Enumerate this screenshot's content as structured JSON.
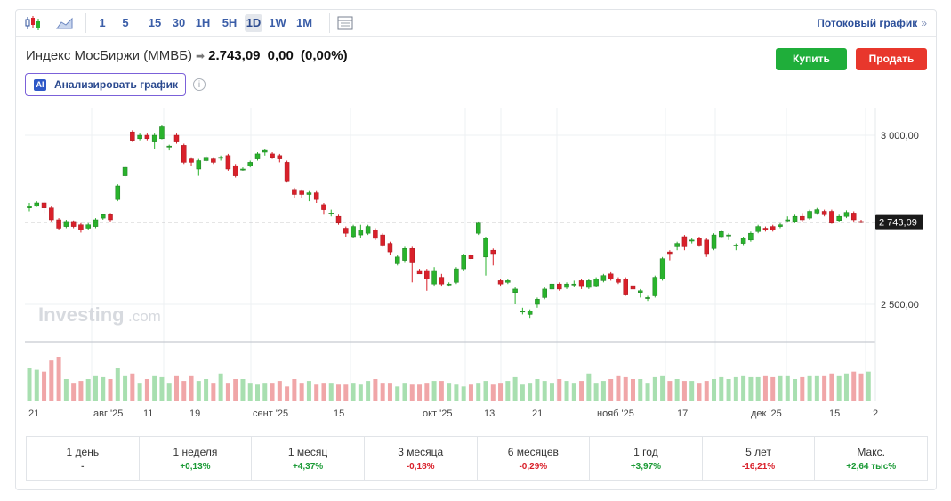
{
  "toolbar": {
    "intervals": [
      "1",
      "5",
      "15",
      "30",
      "1H",
      "5H",
      "1D",
      "1W",
      "1M"
    ],
    "active_interval": "1D",
    "stream_label": "Потоковый график",
    "stream_arrow": "»"
  },
  "instrument": {
    "name": "Индекс МосБиржи (ММВБ)",
    "price": "2.743,09",
    "change": "0,00",
    "change_pct": "(0,00%)"
  },
  "actions": {
    "buy": "Купить",
    "sell": "Продать"
  },
  "ai": {
    "badge": "AI",
    "label": "Анализировать график",
    "info": "i"
  },
  "watermark": {
    "brand": "Investing",
    "suffix": ".com"
  },
  "chart_data": {
    "type": "candlestick",
    "y_ticks": [
      "3 000,00",
      "2 500,00"
    ],
    "y_tick_values": [
      3000,
      2500
    ],
    "last_price_label": "2 743,09",
    "last_price": 2743.09,
    "x_labels": [
      "21",
      "авг '25",
      "11",
      "19",
      "сент '25",
      "15",
      "окт '25",
      "13",
      "21",
      "нояб '25",
      "17",
      "дек '25",
      "15",
      "2"
    ],
    "colors": {
      "up": "#29b32c",
      "down": "#d9202a",
      "up_vol": "#a8dfb0",
      "down_vol": "#f0a6a8"
    },
    "candles": [
      [
        2785,
        2790,
        2775,
        2800
      ],
      [
        2790,
        2800,
        2788,
        2805
      ],
      [
        2800,
        2785,
        2770,
        2805
      ],
      [
        2785,
        2750,
        2745,
        2790
      ],
      [
        2750,
        2725,
        2720,
        2755
      ],
      [
        2730,
        2745,
        2725,
        2750
      ],
      [
        2745,
        2730,
        2725,
        2748
      ],
      [
        2735,
        2720,
        2712,
        2740
      ],
      [
        2725,
        2735,
        2720,
        2740
      ],
      [
        2730,
        2750,
        2725,
        2755
      ],
      [
        2755,
        2765,
        2750,
        2768
      ],
      [
        2765,
        2750,
        2745,
        2770
      ],
      [
        2810,
        2850,
        2805,
        2855
      ],
      [
        2880,
        2905,
        2875,
        2910
      ],
      [
        3010,
        2985,
        2980,
        3015
      ],
      [
        2990,
        3000,
        2985,
        3005
      ],
      [
        3000,
        2990,
        2985,
        3005
      ],
      [
        2980,
        3000,
        2960,
        3005
      ],
      [
        2990,
        3025,
        2988,
        3030
      ],
      [
        2965,
        2968,
        2955,
        2972
      ],
      [
        3000,
        2980,
        2975,
        3005
      ],
      [
        2970,
        2920,
        2915,
        2975
      ],
      [
        2930,
        2920,
        2910,
        2935
      ],
      [
        2900,
        2925,
        2880,
        2930
      ],
      [
        2925,
        2935,
        2920,
        2940
      ],
      [
        2930,
        2920,
        2915,
        2935
      ],
      [
        2935,
        2935,
        2925,
        2940
      ],
      [
        2940,
        2900,
        2895,
        2945
      ],
      [
        2910,
        2880,
        2875,
        2915
      ],
      [
        2900,
        2900,
        2895,
        2905
      ],
      [
        2910,
        2920,
        2905,
        2925
      ],
      [
        2930,
        2945,
        2925,
        2950
      ],
      [
        2950,
        2955,
        2940,
        2960
      ],
      [
        2945,
        2935,
        2930,
        2950
      ],
      [
        2940,
        2930,
        2920,
        2945
      ],
      [
        2920,
        2865,
        2860,
        2925
      ],
      [
        2840,
        2825,
        2815,
        2845
      ],
      [
        2835,
        2825,
        2815,
        2840
      ],
      [
        2825,
        2830,
        2805,
        2835
      ],
      [
        2830,
        2810,
        2800,
        2835
      ],
      [
        2795,
        2780,
        2765,
        2800
      ],
      [
        2770,
        2770,
        2760,
        2780
      ],
      [
        2760,
        2740,
        2735,
        2765
      ],
      [
        2725,
        2710,
        2700,
        2730
      ],
      [
        2700,
        2730,
        2695,
        2735
      ],
      [
        2705,
        2720,
        2695,
        2735
      ],
      [
        2710,
        2730,
        2705,
        2735
      ],
      [
        2720,
        2695,
        2690,
        2725
      ],
      [
        2705,
        2675,
        2670,
        2710
      ],
      [
        2680,
        2655,
        2645,
        2685
      ],
      [
        2620,
        2640,
        2615,
        2645
      ],
      [
        2630,
        2665,
        2625,
        2670
      ],
      [
        2665,
        2625,
        2565,
        2670
      ],
      [
        2600,
        2590,
        2590,
        2605
      ],
      [
        2600,
        2575,
        2540,
        2605
      ],
      [
        2560,
        2600,
        2555,
        2610
      ],
      [
        2580,
        2560,
        2555,
        2590
      ],
      [
        2560,
        2560,
        2555,
        2565
      ],
      [
        2565,
        2605,
        2560,
        2610
      ],
      [
        2605,
        2645,
        2600,
        2650
      ],
      [
        2645,
        2635,
        2630,
        2650
      ],
      [
        2710,
        2740,
        2705,
        2745
      ],
      [
        2640,
        2695,
        2585,
        2700
      ],
      [
        2660,
        2650,
        2615,
        2665
      ],
      [
        2570,
        2560,
        2555,
        2575
      ],
      [
        2565,
        2570,
        2560,
        2575
      ],
      [
        2535,
        2545,
        2500,
        2550
      ],
      [
        2480,
        2480,
        2470,
        2490
      ],
      [
        2470,
        2480,
        2460,
        2485
      ],
      [
        2500,
        2515,
        2490,
        2520
      ],
      [
        2520,
        2545,
        2515,
        2550
      ],
      [
        2545,
        2560,
        2540,
        2565
      ],
      [
        2560,
        2545,
        2540,
        2565
      ],
      [
        2550,
        2560,
        2545,
        2565
      ],
      [
        2560,
        2560,
        2550,
        2570
      ],
      [
        2570,
        2555,
        2545,
        2575
      ],
      [
        2550,
        2570,
        2545,
        2575
      ],
      [
        2555,
        2575,
        2550,
        2580
      ],
      [
        2570,
        2585,
        2565,
        2590
      ],
      [
        2590,
        2575,
        2570,
        2595
      ],
      [
        2575,
        2565,
        2560,
        2580
      ],
      [
        2575,
        2530,
        2525,
        2580
      ],
      [
        2555,
        2545,
        2535,
        2560
      ],
      [
        2535,
        2540,
        2520,
        2545
      ],
      [
        2520,
        2520,
        2510,
        2525
      ],
      [
        2525,
        2580,
        2520,
        2585
      ],
      [
        2575,
        2635,
        2570,
        2640
      ],
      [
        2655,
        2650,
        2630,
        2660
      ],
      [
        2670,
        2680,
        2660,
        2685
      ],
      [
        2700,
        2670,
        2660,
        2705
      ],
      [
        2690,
        2690,
        2680,
        2695
      ],
      [
        2695,
        2675,
        2670,
        2700
      ],
      [
        2690,
        2650,
        2640,
        2695
      ],
      [
        2665,
        2705,
        2660,
        2710
      ],
      [
        2700,
        2715,
        2695,
        2720
      ],
      [
        2705,
        2705,
        2690,
        2710
      ],
      [
        2675,
        2675,
        2660,
        2680
      ],
      [
        2680,
        2695,
        2675,
        2700
      ],
      [
        2690,
        2710,
        2685,
        2715
      ],
      [
        2715,
        2730,
        2710,
        2735
      ],
      [
        2725,
        2720,
        2715,
        2730
      ],
      [
        2730,
        2720,
        2715,
        2735
      ],
      [
        2730,
        2735,
        2725,
        2740
      ],
      [
        2750,
        2750,
        2745,
        2760
      ],
      [
        2745,
        2760,
        2740,
        2765
      ],
      [
        2760,
        2750,
        2745,
        2770
      ],
      [
        2755,
        2775,
        2750,
        2780
      ],
      [
        2770,
        2780,
        2765,
        2785
      ],
      [
        2775,
        2765,
        2760,
        2780
      ],
      [
        2775,
        2740,
        2738,
        2780
      ],
      [
        2748,
        2760,
        2742,
        2765
      ],
      [
        2760,
        2772,
        2755,
        2778
      ],
      [
        2770,
        2750,
        2745,
        2775
      ],
      [
        2745,
        2743,
        2740,
        2750
      ]
    ],
    "volumes": [
      18,
      17,
      16,
      22,
      24,
      12,
      10,
      11,
      12,
      14,
      13,
      12,
      18,
      14,
      15,
      10,
      12,
      14,
      13,
      10,
      14,
      11,
      14,
      11,
      12,
      10,
      15,
      10,
      12,
      12,
      10,
      9,
      10,
      10,
      11,
      8,
      12,
      10,
      11,
      9,
      10,
      10,
      9,
      9,
      10,
      9,
      11,
      12,
      10,
      10,
      8,
      10,
      9,
      9,
      10,
      11,
      11,
      10,
      9,
      8,
      9,
      10,
      11,
      9,
      10,
      11,
      13,
      9,
      10,
      12,
      11,
      10,
      12,
      11,
      10,
      11,
      15,
      10,
      11,
      12,
      14,
      13,
      12,
      12,
      10,
      13,
      14,
      11,
      12,
      11,
      11,
      10,
      11,
      12,
      13,
      12,
      13,
      14,
      13,
      13,
      14,
      13,
      14,
      14,
      12,
      13,
      14,
      14,
      14,
      15,
      14,
      15,
      16,
      15,
      16
    ]
  },
  "performance": [
    {
      "label": "1 день",
      "value": "-",
      "dir": "flat"
    },
    {
      "label": "1 неделя",
      "value": "+0,13%",
      "dir": "up"
    },
    {
      "label": "1 месяц",
      "value": "+4,37%",
      "dir": "up"
    },
    {
      "label": "3 месяца",
      "value": "-0,18%",
      "dir": "down"
    },
    {
      "label": "6 месяцев",
      "value": "-0,29%",
      "dir": "down"
    },
    {
      "label": "1 год",
      "value": "+3,97%",
      "dir": "up"
    },
    {
      "label": "5 лет",
      "value": "-16,21%",
      "dir": "down"
    },
    {
      "label": "Макс.",
      "value": "+2,64 тыс%",
      "dir": "up"
    }
  ]
}
